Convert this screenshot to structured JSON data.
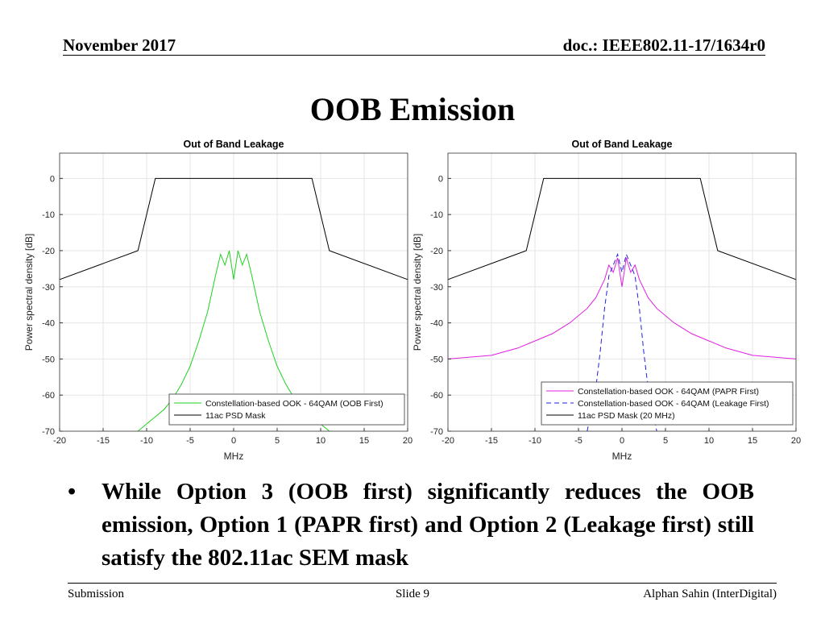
{
  "header": {
    "date": "November 2017",
    "doc_id": "doc.: IEEE802.11-17/1634r0"
  },
  "slide_title": "OOB Emission",
  "bullets": [
    "While Option 3 (OOB first) significantly reduces the OOB emission, Option 1 (PAPR first) and Option 2 (Leakage first) still satisfy the 802.11ac SEM mask"
  ],
  "footer": {
    "left": "Submission",
    "center": "Slide 9",
    "right": "Alphan Sahin (InterDigital)"
  },
  "chart_data": [
    {
      "type": "line",
      "title": "Out of Band Leakage",
      "xlabel": "MHz",
      "ylabel": "Power spectral density [dB]",
      "xlim": [
        -20,
        20
      ],
      "ylim": [
        -70,
        7
      ],
      "xticks": [
        -20,
        -15,
        -10,
        -5,
        0,
        5,
        10,
        15,
        20
      ],
      "yticks": [
        0,
        -10,
        -20,
        -30,
        -40,
        -50,
        -60,
        -70
      ],
      "grid": true,
      "legend_position": "bottom-right",
      "series": [
        {
          "name": "Constellation-based OOK - 64QAM (OOB First)",
          "style": "solid",
          "color": "#1fd21f",
          "x": [
            -11,
            -10,
            -9,
            -8,
            -7,
            -6,
            -5,
            -4,
            -3,
            -2,
            -1.5,
            -1,
            -0.5,
            0,
            0.5,
            1,
            1.5,
            2,
            3,
            4,
            5,
            6,
            7,
            8,
            9,
            10,
            11
          ],
          "y": [
            -70,
            -68,
            -66,
            -64,
            -61,
            -57,
            -52,
            -45,
            -37,
            -26,
            -21,
            -24,
            -20,
            -28,
            -20,
            -24,
            -21,
            -26,
            -37,
            -45,
            -52,
            -57,
            -61,
            -64,
            -66,
            -68,
            -70
          ]
        },
        {
          "name": "11ac PSD Mask",
          "style": "solid",
          "color": "#000000",
          "x": [
            -20,
            -11,
            -9,
            9,
            11,
            20
          ],
          "y": [
            -28,
            -20,
            0,
            0,
            -20,
            -28
          ]
        }
      ]
    },
    {
      "type": "line",
      "title": "Out of Band Leakage",
      "xlabel": "MHz",
      "ylabel": "Power spectral density [dB]",
      "xlim": [
        -20,
        20
      ],
      "ylim": [
        -70,
        7
      ],
      "xticks": [
        -20,
        -15,
        -10,
        -5,
        0,
        5,
        10,
        15,
        20
      ],
      "yticks": [
        0,
        -10,
        -20,
        -30,
        -40,
        -50,
        -60,
        -70
      ],
      "grid": true,
      "legend_position": "bottom-right",
      "series": [
        {
          "name": "Constellation-based OOK - 64QAM (PAPR First)",
          "style": "solid",
          "color": "#e020e0",
          "x": [
            -20,
            -15,
            -12,
            -10,
            -8,
            -6,
            -4,
            -3,
            -2,
            -1.5,
            -1,
            -0.5,
            0,
            0.5,
            1,
            1.5,
            2,
            3,
            4,
            6,
            8,
            10,
            12,
            15,
            20
          ],
          "y": [
            -50,
            -49,
            -47,
            -45,
            -43,
            -40,
            -36,
            -33,
            -28,
            -24,
            -26,
            -22,
            -30,
            -22,
            -26,
            -24,
            -28,
            -33,
            -36,
            -40,
            -43,
            -45,
            -47,
            -49,
            -50
          ]
        },
        {
          "name": "Constellation-based OOK - 64QAM (Leakage First)",
          "style": "dashed",
          "color": "#2020e0",
          "x": [
            -4,
            -3.5,
            -3,
            -2.5,
            -2,
            -1.5,
            -1,
            -0.5,
            0,
            0.5,
            1,
            1.5,
            2,
            2.5,
            3,
            3.5,
            4
          ],
          "y": [
            -70,
            -64,
            -58,
            -48,
            -36,
            -27,
            -24,
            -21,
            -26,
            -21,
            -24,
            -27,
            -36,
            -48,
            -58,
            -64,
            -70
          ]
        },
        {
          "name": "11ac PSD Mask (20 MHz)",
          "style": "solid",
          "color": "#000000",
          "x": [
            -20,
            -11,
            -9,
            9,
            11,
            20
          ],
          "y": [
            -28,
            -20,
            0,
            0,
            -20,
            -28
          ]
        }
      ]
    }
  ]
}
